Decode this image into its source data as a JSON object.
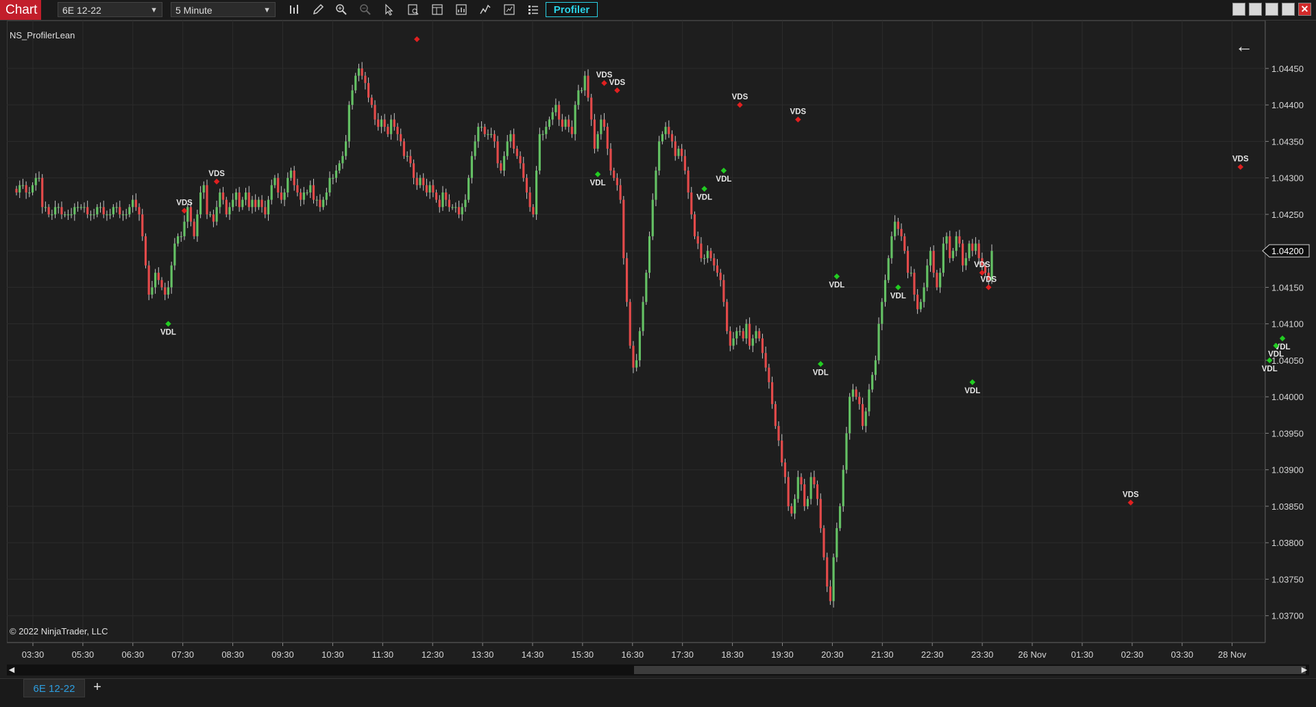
{
  "window": {
    "chart_tab_label": "Chart",
    "instrument": "6E 12-22",
    "interval": "5 Minute",
    "profiler_label": "Profiler",
    "close_glyph": "✕"
  },
  "tools": [
    "bar-chart-icon",
    "pencil-icon",
    "zoom-in-icon",
    "zoom-out-icon",
    "pointer-icon",
    "data-box-icon",
    "template-icon",
    "strategy-icon",
    "indicator-icon",
    "properties-icon",
    "list-icon"
  ],
  "chart": {
    "indicator_label": "NS_ProfilerLean",
    "copyright": "© 2022 NinjaTrader, LLC",
    "back_arrow": "←",
    "current_price_label": "1.04200"
  },
  "bottom": {
    "tab_label": "6E 12-22",
    "add_label": "+",
    "scroll_left": "◀",
    "scroll_right": "▶"
  },
  "colors": {
    "up": "#64c164",
    "down": "#e34a4a",
    "vds": "#e02020",
    "vdl": "#22cc22",
    "text": "#e6e6e6",
    "accent": "#2ad2e6"
  },
  "chart_data": {
    "type": "candlestick",
    "y_ticks": [
      "1.04450",
      "1.04400",
      "1.04350",
      "1.04300",
      "1.04250",
      "1.04200",
      "1.04150",
      "1.04100",
      "1.04050",
      "1.04000",
      "1.03950",
      "1.03900",
      "1.03850",
      "1.03800",
      "1.03750",
      "1.03700"
    ],
    "ylim": [
      1.03665,
      1.0451
    ],
    "x_ticks": [
      "03:30",
      "05:30",
      "06:30",
      "07:30",
      "08:30",
      "09:30",
      "10:30",
      "11:30",
      "12:30",
      "13:30",
      "14:30",
      "15:30",
      "16:30",
      "17:30",
      "18:30",
      "19:30",
      "20:30",
      "21:30",
      "22:30",
      "23:30",
      "26 Nov",
      "01:30",
      "02:30",
      "03:30",
      "28 Nov"
    ],
    "grid": true,
    "close_series": [
      1.0428,
      1.0429,
      1.0429,
      1.0428,
      1.0428,
      1.0429,
      1.043,
      1.043,
      1.0426,
      1.0426,
      1.0425,
      1.0425,
      1.0426,
      1.0426,
      1.0425,
      1.0425,
      1.0425,
      1.0425,
      1.0426,
      1.0426,
      1.0426,
      1.0426,
      1.0425,
      1.0425,
      1.0425,
      1.0426,
      1.0426,
      1.0425,
      1.0425,
      1.0425,
      1.0426,
      1.0426,
      1.0425,
      1.0425,
      1.0425,
      1.0426,
      1.0427,
      1.0426,
      1.0425,
      1.0422,
      1.0418,
      1.0414,
      1.0415,
      1.0417,
      1.0416,
      1.0415,
      1.0414,
      1.0415,
      1.0418,
      1.0421,
      1.0422,
      1.0422,
      1.0424,
      1.0426,
      1.0424,
      1.0422,
      1.0425,
      1.0428,
      1.0429,
      1.0425,
      1.0425,
      1.0424,
      1.0426,
      1.0428,
      1.0427,
      1.0425,
      1.0426,
      1.0427,
      1.0428,
      1.0426,
      1.0427,
      1.0428,
      1.0426,
      1.0427,
      1.0426,
      1.0427,
      1.0426,
      1.0425,
      1.0427,
      1.0429,
      1.043,
      1.0428,
      1.0427,
      1.0428,
      1.043,
      1.0431,
      1.0429,
      1.0428,
      1.0427,
      1.0428,
      1.0428,
      1.0429,
      1.0427,
      1.0427,
      1.0426,
      1.0427,
      1.0428,
      1.043,
      1.043,
      1.0431,
      1.0432,
      1.0433,
      1.0435,
      1.044,
      1.0442,
      1.0444,
      1.0445,
      1.0444,
      1.0443,
      1.0441,
      1.044,
      1.0438,
      1.0437,
      1.0438,
      1.0437,
      1.0436,
      1.0438,
      1.0437,
      1.0436,
      1.0435,
      1.0433,
      1.0433,
      1.0432,
      1.043,
      1.0429,
      1.043,
      1.0429,
      1.0428,
      1.0429,
      1.0428,
      1.0427,
      1.0426,
      1.0428,
      1.0427,
      1.0426,
      1.0426,
      1.0426,
      1.0425,
      1.0426,
      1.0427,
      1.043,
      1.0433,
      1.0435,
      1.0437,
      1.0437,
      1.0436,
      1.0436,
      1.0436,
      1.0435,
      1.0432,
      1.0431,
      1.0433,
      1.0435,
      1.0436,
      1.0434,
      1.0433,
      1.0432,
      1.043,
      1.0428,
      1.0426,
      1.0425,
      1.0431,
      1.0436,
      1.0436,
      1.0437,
      1.0438,
      1.0439,
      1.044,
      1.0438,
      1.0437,
      1.0438,
      1.0437,
      1.0436,
      1.044,
      1.0442,
      1.0442,
      1.0444,
      1.0441,
      1.0438,
      1.0434,
      1.0436,
      1.0438,
      1.0437,
      1.0434,
      1.0431,
      1.043,
      1.0429,
      1.0427,
      1.0419,
      1.0413,
      1.0407,
      1.0404,
      1.0405,
      1.0409,
      1.0413,
      1.0417,
      1.0422,
      1.0427,
      1.0431,
      1.0435,
      1.0436,
      1.0437,
      1.0436,
      1.0435,
      1.0433,
      1.0434,
      1.0433,
      1.0431,
      1.0428,
      1.0425,
      1.0422,
      1.0421,
      1.0419,
      1.0419,
      1.042,
      1.0419,
      1.0418,
      1.0417,
      1.0416,
      1.0413,
      1.0409,
      1.0407,
      1.0408,
      1.0409,
      1.0409,
      1.0408,
      1.041,
      1.0407,
      1.0408,
      1.0409,
      1.0408,
      1.0406,
      1.0404,
      1.0402,
      1.0399,
      1.0396,
      1.0394,
      1.0391,
      1.0389,
      1.0385,
      1.0384,
      1.0386,
      1.0389,
      1.0388,
      1.0385,
      1.0386,
      1.0389,
      1.0388,
      1.0386,
      1.0382,
      1.0378,
      1.0374,
      1.0372,
      1.0378,
      1.0382,
      1.0385,
      1.039,
      1.0395,
      1.04,
      1.0401,
      1.04,
      1.0399,
      1.0396,
      1.0398,
      1.0401,
      1.0403,
      1.0405,
      1.041,
      1.0413,
      1.0416,
      1.0419,
      1.0422,
      1.0424,
      1.0423,
      1.0422,
      1.042,
      1.0417,
      1.0417,
      1.0414,
      1.0412,
      1.0413,
      1.0415,
      1.0418,
      1.042,
      1.0417,
      1.0415,
      1.0417,
      1.0421,
      1.0422,
      1.0419,
      1.042,
      1.0422,
      1.0421,
      1.0418,
      1.0419,
      1.0421,
      1.042,
      1.0421,
      1.0419,
      1.0418,
      1.0417,
      1.0416,
      1.042
    ],
    "signals": [
      {
        "label": "VDS",
        "bar": 52,
        "price": 1.04255
      },
      {
        "label": "VDS",
        "bar": 62,
        "price": 1.04295
      },
      {
        "label": "VDL",
        "bar": 47,
        "price": 1.041
      },
      {
        "label": "",
        "bar": 124,
        "price": 1.0449
      },
      {
        "label": "VDS",
        "bar": 182,
        "price": 1.0443
      },
      {
        "label": "VDS",
        "bar": 186,
        "price": 1.0442
      },
      {
        "label": "VDL",
        "bar": 180,
        "price": 1.04305
      },
      {
        "label": "VDS",
        "bar": 224,
        "price": 1.044
      },
      {
        "label": "VDL",
        "bar": 213,
        "price": 1.04285
      },
      {
        "label": "VDL",
        "bar": 219,
        "price": 1.0431
      },
      {
        "label": "VDS",
        "bar": 242,
        "price": 1.0438
      },
      {
        "label": "VDL",
        "bar": 254,
        "price": 1.04165
      },
      {
        "label": "VDL",
        "bar": 249,
        "price": 1.04045
      },
      {
        "label": "VDL",
        "bar": 273,
        "price": 1.0415
      },
      {
        "label": "VDS",
        "bar": 299,
        "price": 1.0417
      },
      {
        "label": "VDS",
        "bar": 301,
        "price": 1.0415
      },
      {
        "label": "VDL",
        "bar": 296,
        "price": 1.0402
      },
      {
        "label": "VDS",
        "bar": 345,
        "price": 1.03855
      },
      {
        "label": "VDS",
        "bar": 379,
        "price": 1.04315
      },
      {
        "label": "VDL",
        "bar": 392,
        "price": 1.0408
      },
      {
        "label": "VDL",
        "bar": 390,
        "price": 1.0407
      },
      {
        "label": "VDL",
        "bar": 388,
        "price": 1.0405
      }
    ]
  }
}
